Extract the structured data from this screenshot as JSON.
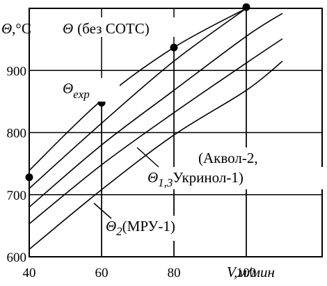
{
  "chart_data": {
    "type": "line",
    "title": "",
    "ylabel": {
      "symbol": "Θ",
      "unit": ",°C"
    },
    "xlabel": {
      "symbol": "V",
      "unit": ",м/мин"
    },
    "xlim": [
      40,
      110
    ],
    "ylim": [
      600,
      1000
    ],
    "x_ticks": [
      40,
      60,
      80,
      100
    ],
    "x_tick_labels": [
      "40",
      "60",
      "80",
      "100"
    ],
    "y_ticks": [
      600,
      700,
      800,
      900
    ],
    "y_tick_labels": [
      "600",
      "700",
      "800",
      "900"
    ],
    "grid": true,
    "series": [
      {
        "name": "Θ (без СОТС)",
        "x": [
          40,
          60,
          80,
          100
        ],
        "y": [
          739,
          852,
          937,
          1000
        ]
      },
      {
        "name": "Θexp",
        "x": [
          40,
          60,
          80,
          100
        ],
        "y": [
          710,
          815,
          915,
          1000
        ],
        "marker_points": [
          [
            40,
            728
          ],
          [
            60,
            848
          ],
          [
            80,
            937
          ],
          [
            100,
            1002
          ]
        ]
      },
      {
        "name": "Θ1,3 (Аквол-2, Укринол-1)",
        "x": [
          40,
          60,
          80,
          100,
          110
        ],
        "y": [
          680,
          780,
          868,
          955,
          992
        ]
      },
      {
        "name": "Θ2 (МРУ-1)",
        "x": [
          40,
          60,
          80,
          100,
          110
        ],
        "y": [
          653,
          748,
          832,
          912,
          951
        ]
      },
      {
        "name": "",
        "x": [
          40,
          60,
          80,
          100,
          110
        ],
        "y": [
          612,
          708,
          796,
          868,
          915
        ]
      }
    ],
    "annotations": {
      "theta_base": {
        "symbol": "Θ",
        "text": "(без СОТС)"
      },
      "theta_exp": {
        "symbol": "Θ",
        "sub": "exp"
      },
      "theta_13": {
        "symbol": "Θ",
        "sub": "1,3",
        "text": "Укринол-1)"
      },
      "akvol": "(Аквол-2,",
      "theta_2": {
        "symbol": "Θ",
        "sub": "2",
        "text": "(МРУ-1)"
      }
    }
  }
}
